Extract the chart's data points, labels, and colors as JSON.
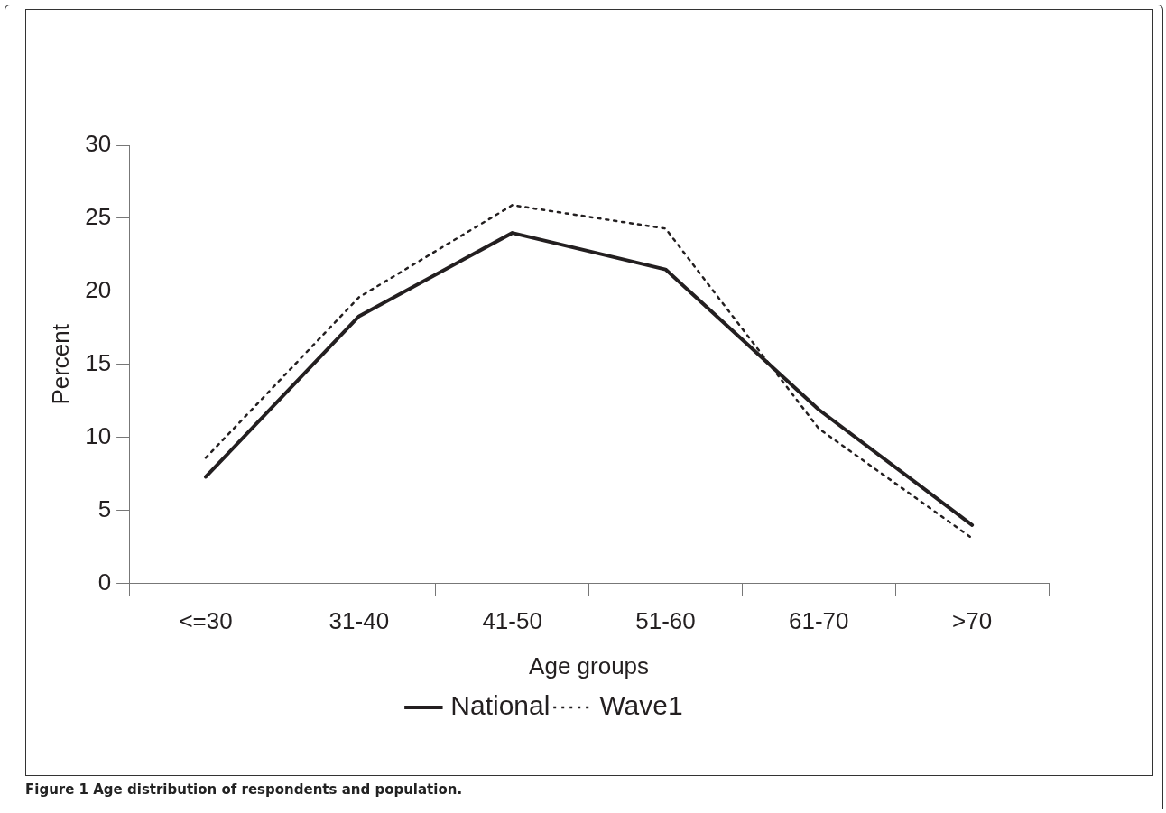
{
  "chart_data": {
    "type": "line",
    "xlabel": "Age groups",
    "ylabel": "Percent",
    "categories": [
      "<=30",
      "31-40",
      "41-50",
      "51-60",
      "61-70",
      ">70"
    ],
    "series": [
      {
        "name": "National",
        "color": "#231f20",
        "line_style": "solid",
        "values": [
          7.3,
          18.3,
          24.0,
          21.5,
          11.9,
          4.0
        ]
      },
      {
        "name": "Wave1",
        "color": "#231f20",
        "line_style": "dotted",
        "values": [
          8.6,
          19.6,
          25.9,
          24.3,
          10.6,
          3.1
        ]
      }
    ],
    "ylim": [
      0,
      30
    ],
    "yticks": [
      0,
      5,
      10,
      15,
      20,
      25,
      30
    ],
    "grid": false,
    "legend": "bottom",
    "marker": "none",
    "annotations": [
      "Figure 1 Age distribution of respondents and population."
    ]
  }
}
